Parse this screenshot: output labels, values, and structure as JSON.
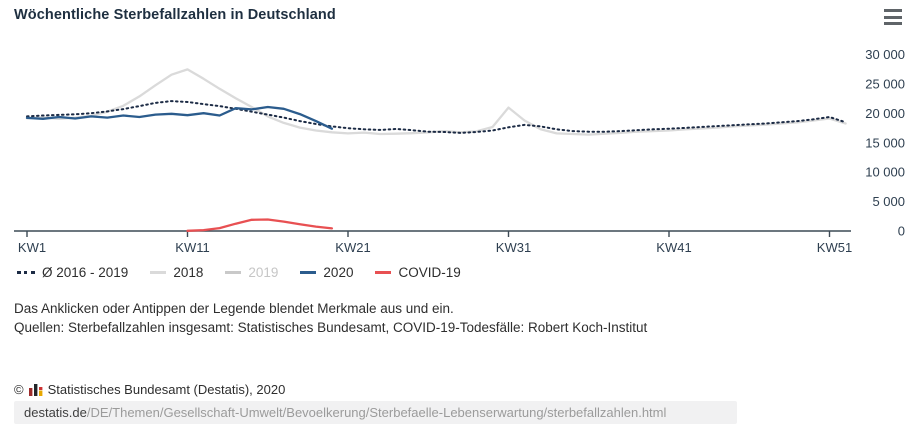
{
  "header": {
    "title": "Wöchentliche Sterbefallzahlen in Deutschland"
  },
  "chart_data": {
    "type": "line",
    "x_unit": "Kalenderwoche",
    "grid": false,
    "y_axis_side": "right",
    "y_range": [
      0,
      30000
    ],
    "x_ticks": [
      {
        "week": 1,
        "label": "KW1"
      },
      {
        "week": 11,
        "label": "KW11"
      },
      {
        "week": 21,
        "label": "KW21"
      },
      {
        "week": 31,
        "label": "KW31"
      },
      {
        "week": 41,
        "label": "KW41"
      },
      {
        "week": 51,
        "label": "KW51"
      }
    ],
    "y_ticks": [
      {
        "value": 0,
        "label": "0"
      },
      {
        "value": 5000,
        "label": "5 000"
      },
      {
        "value": 10000,
        "label": "10 000"
      },
      {
        "value": 15000,
        "label": "15 000"
      },
      {
        "value": 20000,
        "label": "20 000"
      },
      {
        "value": 25000,
        "label": "25 000"
      },
      {
        "value": 30000,
        "label": "30 000"
      }
    ],
    "series": [
      {
        "name": "2018",
        "color": "#dadada",
        "style": "solid",
        "visible": true,
        "start_week": 1,
        "values": [
          19200,
          19350,
          19100,
          19300,
          19600,
          20300,
          21300,
          22900,
          24800,
          26600,
          27500,
          25900,
          24200,
          22600,
          21100,
          19500,
          18400,
          17600,
          17100,
          16800,
          16600,
          16750,
          16500,
          16550,
          16650,
          16800,
          17000,
          16800,
          16950,
          17700,
          21000,
          18800,
          17300,
          16600,
          16500,
          16400,
          16550,
          16700,
          16900,
          17000,
          17100,
          17300,
          17450,
          17600,
          17800,
          17950,
          18100,
          18300,
          18500,
          18800,
          19150,
          18300
        ]
      },
      {
        "name": "Ø 2016 - 2019",
        "color": "#1c2b45",
        "style": "dotted",
        "visible": true,
        "start_week": 1,
        "values": [
          19500,
          19650,
          19750,
          19850,
          20050,
          20350,
          20750,
          21250,
          21800,
          22100,
          21950,
          21600,
          21250,
          20800,
          20300,
          19800,
          19300,
          18700,
          18200,
          17800,
          17500,
          17300,
          17200,
          17350,
          17150,
          16900,
          16850,
          16700,
          16850,
          17100,
          17650,
          18050,
          17800,
          17300,
          17000,
          16900,
          16900,
          17000,
          17150,
          17300,
          17400,
          17550,
          17700,
          17850,
          18000,
          18150,
          18300,
          18500,
          18700,
          19000,
          19400,
          18500
        ]
      },
      {
        "name": "2019",
        "color": "#c9c9c9",
        "style": "solid",
        "visible": false,
        "start_week": 1,
        "values": []
      },
      {
        "name": "2020",
        "color": "#2b5c8d",
        "style": "solid",
        "visible": true,
        "start_week": 1,
        "values": [
          19250,
          19100,
          19400,
          19150,
          19500,
          19300,
          19650,
          19400,
          19800,
          19950,
          19700,
          20050,
          19650,
          20900,
          20700,
          21100,
          20800,
          19900,
          18700,
          17400
        ]
      },
      {
        "name": "COVID-19",
        "color": "#e85052",
        "style": "solid",
        "visible": true,
        "start_week": 11,
        "values": [
          40,
          150,
          500,
          1250,
          1900,
          1950,
          1600,
          1150,
          750,
          450
        ]
      }
    ],
    "legend_order": [
      "Ø 2016 - 2019",
      "2018",
      "2019",
      "2020",
      "COVID-19"
    ],
    "legend_disabled_color": "#c6c6c6"
  },
  "footer": {
    "hint": "Das Anklicken oder Antippen der Legende blendet Merkmale aus und ein.",
    "sources": "Quellen: Sterbefallzahlen insgesamt: Statistisches Bundesamt, COVID-19-Todesfälle: Robert Koch-Institut",
    "copyright_symbol": "©",
    "copyright_text": "Statistisches Bundesamt (Destatis), 2020",
    "url_domain": "destatis.de",
    "url_path": "/DE/Themen/Gesellschaft-Umwelt/Bevoelkerung/Sterbefaelle-Lebenserwartung/sterbefallzahlen.html"
  },
  "colors": {
    "title": "#1e2f40",
    "axis": "#3c4a55",
    "axis_label": "#2e3f50",
    "destatis_logo": [
      "#9e2b2b",
      "#22262a",
      "#e8a800"
    ]
  }
}
